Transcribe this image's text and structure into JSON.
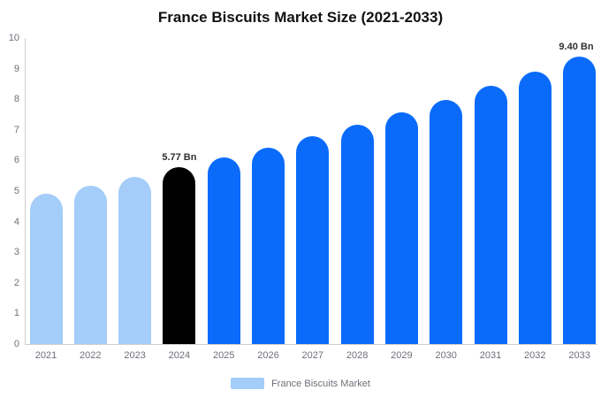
{
  "title": "France Biscuits Market Size (2021-2033)",
  "legend": {
    "label": "France Biscuits Market",
    "swatch_color": "#a4cdfa"
  },
  "colors": {
    "light_blue": "#a4cdfa",
    "blue": "#0a6bfa",
    "black": "#000000",
    "axis_line": "#cfcfcf",
    "axis_text": "#6e7079",
    "title_text": "#111111",
    "annotation_text": "#2f2f2f",
    "background": "#ffffff"
  },
  "chart_data": {
    "type": "bar",
    "title": "France Biscuits Market Size (2021-2033)",
    "xlabel": "",
    "ylabel": "",
    "unit": "Bn",
    "series_name": "France Biscuits Market",
    "categories": [
      "2021",
      "2022",
      "2023",
      "2024",
      "2025",
      "2026",
      "2027",
      "2028",
      "2029",
      "2030",
      "2031",
      "2032",
      "2033"
    ],
    "values": [
      4.9,
      5.18,
      5.47,
      5.77,
      6.09,
      6.43,
      6.79,
      7.17,
      7.57,
      7.99,
      8.43,
      8.9,
      9.4
    ],
    "bar_colors": [
      "#a4cdfa",
      "#a4cdfa",
      "#a4cdfa",
      "#000000",
      "#0a6bfa",
      "#0a6bfa",
      "#0a6bfa",
      "#0a6bfa",
      "#0a6bfa",
      "#0a6bfa",
      "#0a6bfa",
      "#0a6bfa",
      "#0a6bfa"
    ],
    "annotations": [
      {
        "category": "2024",
        "text": "5.77 Bn"
      },
      {
        "category": "2033",
        "text": "9.40 Bn"
      }
    ],
    "y_ticks": [
      0,
      1,
      2,
      3,
      4,
      5,
      6,
      7,
      8,
      9,
      10
    ],
    "ylim": [
      0,
      10
    ],
    "grid": false,
    "legend_position": "bottom"
  }
}
